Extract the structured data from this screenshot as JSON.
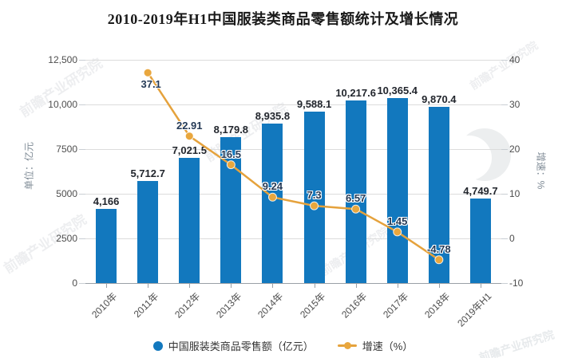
{
  "title": "2010-2019年H1中国服装类商品零售额统计及增长情况",
  "watermark": {
    "text": "前瞻产业研究院",
    "logo": "qianzhan-logo"
  },
  "chart_data": {
    "type": "bar+line combo",
    "categories": [
      "2010年",
      "2011年",
      "2012年",
      "2013年",
      "2014年",
      "2015年",
      "2016年",
      "2017年",
      "2018年",
      "2019年H1"
    ],
    "series": [
      {
        "name": "中国服装类商品零售额（亿元）",
        "type": "bar",
        "color": "#1278BE",
        "values": [
          4166,
          5712.7,
          7021.5,
          8179.8,
          8935.8,
          9588.1,
          10217.6,
          10365.4,
          9870.4,
          4749.7
        ],
        "labels": [
          "4,166",
          "5,712.7",
          "7,021.5",
          "8,179.8",
          "8,935.8",
          "9,588.1",
          "10,217.6",
          "10,365.4",
          "9,870.4",
          "4,749.7"
        ]
      },
      {
        "name": "增速（%）",
        "type": "line",
        "color": "#E5A23C",
        "marker_color": "#E9A73E",
        "x_start_index": 1,
        "values": [
          37.1,
          22.91,
          16.5,
          9.24,
          7.3,
          6.57,
          1.45,
          -4.78
        ],
        "labels": [
          "37.1",
          "22.91",
          "16.5",
          "9.24",
          "7.3",
          "6.57",
          "1.45",
          "-4.78"
        ]
      }
    ],
    "left_axis": {
      "name": "单位：亿元",
      "ticks": [
        "12,500",
        "10,000",
        "7500",
        "5000",
        "2500",
        "0"
      ],
      "min": 0,
      "max": 12500
    },
    "right_axis": {
      "name": "增速：%",
      "ticks": [
        "40",
        "30",
        "20",
        "10",
        "0",
        "-10"
      ],
      "min": -10,
      "max": 40
    },
    "grid": true,
    "legend_position": "bottom"
  }
}
